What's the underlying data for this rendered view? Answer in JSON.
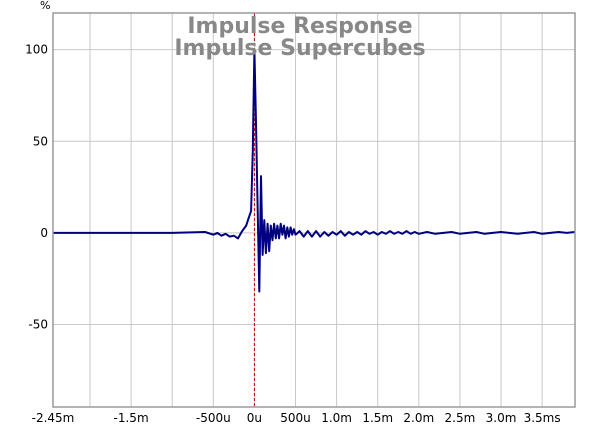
{
  "chart_data": {
    "type": "line",
    "title": "Impulse Response",
    "subtitle": "Impulse Supercubes",
    "ylabel": "%",
    "xlim": [
      -2.45,
      3.9
    ],
    "ylim": [
      -95,
      120
    ],
    "grid": true,
    "x_ticks": [
      {
        "value": -2.45,
        "label": "-2.45m"
      },
      {
        "value": -1.5,
        "label": "-1.5m"
      },
      {
        "value": -0.5,
        "label": "-500u"
      },
      {
        "value": 0,
        "label": "0u"
      },
      {
        "value": 0.5,
        "label": "500u"
      },
      {
        "value": 1.0,
        "label": "1.0m"
      },
      {
        "value": 1.5,
        "label": "1.5m"
      },
      {
        "value": 2.0,
        "label": "2.0m"
      },
      {
        "value": 2.5,
        "label": "2.5m"
      },
      {
        "value": 3.0,
        "label": "3.0m"
      },
      {
        "value": 3.5,
        "label": "3.5ms"
      }
    ],
    "x_grid": [
      -2.0,
      -1.5,
      -1.0,
      -0.5,
      0,
      0.5,
      1.0,
      1.5,
      2.0,
      2.5,
      3.0,
      3.5
    ],
    "y_ticks": [
      {
        "value": 100,
        "label": "100"
      },
      {
        "value": 50,
        "label": "50"
      },
      {
        "value": 0,
        "label": "0"
      },
      {
        "value": -50,
        "label": "-50"
      }
    ],
    "marker_x": 0,
    "series": [
      {
        "color": "#000080",
        "x": [
          -2.45,
          -2.0,
          -1.5,
          -1.0,
          -0.6,
          -0.5,
          -0.45,
          -0.4,
          -0.35,
          -0.3,
          -0.25,
          -0.2,
          -0.15,
          -0.1,
          -0.07,
          -0.04,
          -0.02,
          0.0,
          0.02,
          0.04,
          0.06,
          0.08,
          0.1,
          0.12,
          0.14,
          0.16,
          0.18,
          0.2,
          0.22,
          0.24,
          0.26,
          0.28,
          0.3,
          0.32,
          0.34,
          0.36,
          0.38,
          0.4,
          0.42,
          0.44,
          0.46,
          0.48,
          0.5,
          0.55,
          0.6,
          0.65,
          0.7,
          0.75,
          0.8,
          0.85,
          0.9,
          0.95,
          1.0,
          1.05,
          1.1,
          1.15,
          1.2,
          1.25,
          1.3,
          1.35,
          1.4,
          1.45,
          1.5,
          1.55,
          1.6,
          1.65,
          1.7,
          1.75,
          1.8,
          1.85,
          1.9,
          1.95,
          2.0,
          2.1,
          2.2,
          2.3,
          2.4,
          2.5,
          2.6,
          2.7,
          2.8,
          2.9,
          3.0,
          3.1,
          3.2,
          3.3,
          3.4,
          3.5,
          3.6,
          3.7,
          3.8,
          3.9
        ],
        "y": [
          0,
          0,
          0,
          0,
          0.5,
          -1,
          0,
          -1.5,
          -0.5,
          -2,
          -1.5,
          -3,
          1,
          4,
          8,
          12,
          45,
          100,
          60,
          12,
          -32,
          31,
          -12,
          7,
          -11,
          5,
          -10,
          4,
          -4,
          5,
          -3,
          4,
          -3,
          5,
          -1,
          4,
          -3,
          3,
          -2,
          3,
          -1,
          2,
          -1,
          1,
          -2,
          1,
          -2,
          1,
          -2,
          0.5,
          -1.5,
          0.5,
          -1,
          1,
          -1.5,
          0.5,
          -1,
          0.5,
          -1,
          1,
          -0.5,
          0.5,
          -1,
          0.5,
          -0.5,
          1,
          -0.5,
          0.5,
          -0.5,
          1,
          -0.5,
          0.5,
          -0.5,
          0.5,
          -0.5,
          0,
          0.5,
          -0.5,
          0,
          0.5,
          -0.5,
          0,
          0.5,
          0,
          -0.5,
          0,
          0.5,
          -0.5,
          0,
          0.5,
          0,
          0.5
        ]
      }
    ]
  }
}
